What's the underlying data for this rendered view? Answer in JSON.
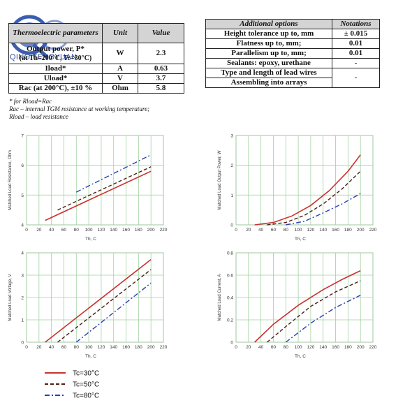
{
  "logo": {
    "text": "QING FENGYUAN"
  },
  "table1": {
    "headers": [
      "Thermoelectric parameters",
      "Unit",
      "Value"
    ],
    "rows": [
      {
        "param": "Output power, P*",
        "param_sub": "(at Th=200°C, Tc=30°C)",
        "unit": "W",
        "value": "2.3"
      },
      {
        "param": "Iload*",
        "unit": "A",
        "value": "0.63"
      },
      {
        "param": "Uload*",
        "unit": "V",
        "value": "3.7"
      },
      {
        "param": "Rac (at 200°C), ±10 %",
        "unit": "Ohm",
        "value": "5.8"
      }
    ]
  },
  "notes": [
    "* for Rload=Rac",
    "Rac – internal TGM resistance at working temperature;",
    "Rload – load resistance"
  ],
  "table2": {
    "headers": [
      "Additional options",
      "Notations"
    ],
    "rows": [
      {
        "option": "Height tolerance up to, mm",
        "value": "± 0.015"
      },
      {
        "option": "Flatness up to, mm;",
        "value": "0.01"
      },
      {
        "option": "Parallelism up to, mm;",
        "value": "0.01"
      },
      {
        "option": "Sealants: epoxy, urethane",
        "value": "-"
      },
      {
        "option": "Type and length of lead wires",
        "value": "-"
      },
      {
        "option": "Assembling into arrays",
        "value": ""
      }
    ]
  },
  "chart_data": [
    {
      "type": "line",
      "xlabel": "Th, C",
      "ylabel": "Matched Load Resistance, Ohm",
      "xlim": [
        0,
        220
      ],
      "ylim": [
        4,
        7
      ],
      "xticks": [
        0,
        20,
        40,
        60,
        80,
        100,
        120,
        140,
        160,
        180,
        200,
        220
      ],
      "yticks": [
        4,
        5,
        6,
        7
      ],
      "grid": true,
      "series": [
        {
          "name": "Tc=30°C",
          "x": [
            30,
            200
          ],
          "y": [
            4.15,
            5.8
          ]
        },
        {
          "name": "Tc=50°C",
          "x": [
            50,
            200
          ],
          "y": [
            4.5,
            5.95
          ]
        },
        {
          "name": "Tc=80°C",
          "x": [
            80,
            200
          ],
          "y": [
            5.1,
            6.35
          ]
        }
      ]
    },
    {
      "type": "line",
      "xlabel": "Th, C",
      "ylabel": "Matched Load Output Power, W",
      "xlim": [
        0,
        220
      ],
      "ylim": [
        0,
        3
      ],
      "xticks": [
        0,
        20,
        40,
        60,
        80,
        100,
        120,
        140,
        160,
        180,
        200,
        220
      ],
      "yticks": [
        0,
        1,
        2,
        3
      ],
      "grid": true,
      "series": [
        {
          "name": "Tc=30°C",
          "x": [
            30,
            60,
            90,
            120,
            150,
            180,
            200
          ],
          "y": [
            0,
            0.08,
            0.3,
            0.65,
            1.15,
            1.8,
            2.35
          ]
        },
        {
          "name": "Tc=50°C",
          "x": [
            50,
            80,
            110,
            140,
            170,
            200
          ],
          "y": [
            0,
            0.08,
            0.32,
            0.7,
            1.2,
            1.8
          ]
        },
        {
          "name": "Tc=80°C",
          "x": [
            80,
            110,
            140,
            170,
            200
          ],
          "y": [
            0,
            0.12,
            0.4,
            0.7,
            1.05
          ]
        }
      ]
    },
    {
      "type": "line",
      "xlabel": "Th, C",
      "ylabel": "Matched Load Voltage, V",
      "xlim": [
        0,
        220
      ],
      "ylim": [
        0,
        4
      ],
      "xticks": [
        0,
        20,
        40,
        60,
        80,
        100,
        120,
        140,
        160,
        180,
        200,
        220
      ],
      "yticks": [
        0,
        1,
        2,
        3,
        4
      ],
      "grid": true,
      "series": [
        {
          "name": "Tc=30°C",
          "x": [
            30,
            200
          ],
          "y": [
            0,
            3.7
          ]
        },
        {
          "name": "Tc=50°C",
          "x": [
            50,
            200
          ],
          "y": [
            0,
            3.25
          ]
        },
        {
          "name": "Tc=80°C",
          "x": [
            80,
            200
          ],
          "y": [
            0,
            2.65
          ]
        }
      ]
    },
    {
      "type": "line",
      "xlabel": "Th, C",
      "ylabel": "Matched Load Current, A",
      "xlim": [
        0,
        220
      ],
      "ylim": [
        0,
        0.8
      ],
      "xticks": [
        0,
        20,
        40,
        60,
        80,
        100,
        120,
        140,
        160,
        180,
        200,
        220
      ],
      "yticks": [
        0,
        0.2,
        0.4,
        0.6,
        0.8
      ],
      "grid": true,
      "series": [
        {
          "name": "Tc=30°C",
          "x": [
            30,
            60,
            100,
            140,
            170,
            200
          ],
          "y": [
            0,
            0.16,
            0.33,
            0.47,
            0.56,
            0.64
          ]
        },
        {
          "name": "Tc=50°C",
          "x": [
            50,
            80,
            120,
            160,
            200
          ],
          "y": [
            0,
            0.14,
            0.32,
            0.45,
            0.55
          ]
        },
        {
          "name": "Tc=80°C",
          "x": [
            80,
            120,
            160,
            200
          ],
          "y": [
            0,
            0.17,
            0.31,
            0.42
          ]
        }
      ]
    }
  ],
  "legend": [
    {
      "name": "Tc=30°C",
      "color": "#c8322e",
      "dash": "solid"
    },
    {
      "name": "Tc=50°C",
      "color": "#4a1f14",
      "dash": "dash"
    },
    {
      "name": "Tc=80°C",
      "color": "#2a3fb0",
      "dash": "dashdot"
    }
  ]
}
